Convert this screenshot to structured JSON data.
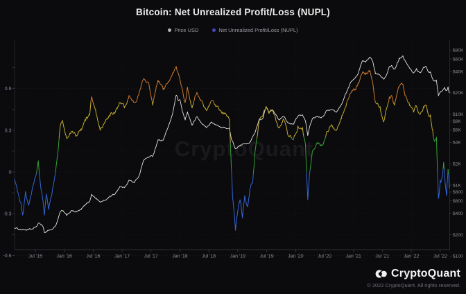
{
  "header": {
    "title": "Bitcoin: Net Unrealized Profit/Loss (NUPL)"
  },
  "legend": [
    {
      "label": "Price USD",
      "color": "#b4b4b4"
    },
    {
      "label": "Net Unrealized Profit/Loss (NUPL)",
      "color": "#4646c0"
    }
  ],
  "watermark": "CryptoQuant",
  "footer": {
    "brand": "CryptoQuant",
    "copyright": "© 2022 CryptoQuant. All rights reserved."
  },
  "chart_data": {
    "type": "line",
    "title": "Bitcoin: Net Unrealized Profit/Loss (NUPL)",
    "grid": "dotted",
    "legend_position": "top-center",
    "x_ticks": [
      {
        "t": 2015.5,
        "label": "Jul '15"
      },
      {
        "t": 2016.0,
        "label": "Jan '16"
      },
      {
        "t": 2016.5,
        "label": "Jul '16"
      },
      {
        "t": 2017.0,
        "label": "Jan '17"
      },
      {
        "t": 2017.5,
        "label": "Jul '17"
      },
      {
        "t": 2018.0,
        "label": "Jan '18"
      },
      {
        "t": 2018.5,
        "label": "Jul '18"
      },
      {
        "t": 2019.0,
        "label": "Jan '19"
      },
      {
        "t": 2019.5,
        "label": "Jul '19"
      },
      {
        "t": 2020.0,
        "label": "Jan '20"
      },
      {
        "t": 2020.5,
        "label": "Jul '20"
      },
      {
        "t": 2021.0,
        "label": "Jan '21"
      },
      {
        "t": 2021.5,
        "label": "Jul '21"
      },
      {
        "t": 2022.0,
        "label": "Jan '22"
      },
      {
        "t": 2022.5,
        "label": "Jul '22"
      }
    ],
    "left_axis": {
      "name": "NUPL",
      "range": [
        -0.72,
        0.95
      ],
      "grid_step": 0.15,
      "ticks": [
        {
          "v": 0.6,
          "label": "0.6"
        },
        {
          "v": 0.3,
          "label": "0.3"
        },
        {
          "v": 0,
          "label": "0"
        },
        {
          "v": -0.3,
          "label": "-0.3"
        },
        {
          "v": -0.6,
          "label": "-0.6"
        }
      ]
    },
    "right_axis": {
      "name": "Price USD",
      "scale": "log",
      "ticks": [
        {
          "v": 80000,
          "label": "$80K"
        },
        {
          "v": 60000,
          "label": "$60K"
        },
        {
          "v": 40000,
          "label": "$40K"
        },
        {
          "v": 20000,
          "label": "$20K"
        },
        {
          "v": 10000,
          "label": "$10K"
        },
        {
          "v": 8000,
          "label": "$8K"
        },
        {
          "v": 6000,
          "label": "$6K"
        },
        {
          "v": 4000,
          "label": "$4K"
        },
        {
          "v": 2000,
          "label": "$2K"
        },
        {
          "v": 1000,
          "label": "$1K"
        },
        {
          "v": 800,
          "label": "$800"
        },
        {
          "v": 600,
          "label": "$600"
        },
        {
          "v": 400,
          "label": "$400"
        },
        {
          "v": 200,
          "label": "$200"
        },
        {
          "v": 100,
          "label": "$100"
        }
      ]
    },
    "series": [
      {
        "name": "Price USD",
        "axis": "right",
        "color": "#e4e4e4",
        "points": [
          [
            2015.14,
            250
          ],
          [
            2015.22,
            240
          ],
          [
            2015.29,
            236
          ],
          [
            2015.37,
            233
          ],
          [
            2015.46,
            241
          ],
          [
            2015.52,
            262
          ],
          [
            2015.56,
            292
          ],
          [
            2015.62,
            270
          ],
          [
            2015.66,
            214
          ],
          [
            2015.72,
            232
          ],
          [
            2015.79,
            238
          ],
          [
            2015.85,
            268
          ],
          [
            2015.89,
            330
          ],
          [
            2015.93,
            420
          ],
          [
            2015.97,
            435
          ],
          [
            2016.04,
            372
          ],
          [
            2016.12,
            436
          ],
          [
            2016.21,
            418
          ],
          [
            2016.29,
            450
          ],
          [
            2016.37,
            532
          ],
          [
            2016.44,
            585
          ],
          [
            2016.47,
            745
          ],
          [
            2016.54,
            662
          ],
          [
            2016.62,
            578
          ],
          [
            2016.71,
            610
          ],
          [
            2016.79,
            700
          ],
          [
            2016.87,
            742
          ],
          [
            2016.96,
            955
          ],
          [
            2017.04,
            920
          ],
          [
            2017.12,
            1180
          ],
          [
            2017.21,
            1080
          ],
          [
            2017.29,
            1340
          ],
          [
            2017.37,
            2250
          ],
          [
            2017.46,
            2500
          ],
          [
            2017.53,
            2550
          ],
          [
            2017.62,
            4350
          ],
          [
            2017.71,
            4300
          ],
          [
            2017.79,
            6400
          ],
          [
            2017.87,
            9800
          ],
          [
            2017.935,
            18500
          ],
          [
            2017.97,
            15500
          ],
          [
            2018.0,
            16000
          ],
          [
            2018.04,
            11000
          ],
          [
            2018.09,
            8300
          ],
          [
            2018.13,
            10800
          ],
          [
            2018.21,
            7000
          ],
          [
            2018.29,
            9200
          ],
          [
            2018.37,
            7500
          ],
          [
            2018.46,
            6450
          ],
          [
            2018.54,
            7700
          ],
          [
            2018.62,
            7030
          ],
          [
            2018.71,
            6600
          ],
          [
            2018.79,
            6400
          ],
          [
            2018.855,
            6350
          ],
          [
            2018.89,
            4450
          ],
          [
            2018.96,
            3250
          ],
          [
            2019.04,
            3560
          ],
          [
            2019.12,
            3850
          ],
          [
            2019.21,
            4080
          ],
          [
            2019.29,
            5300
          ],
          [
            2019.37,
            8500
          ],
          [
            2019.43,
            8700
          ],
          [
            2019.49,
            12800
          ],
          [
            2019.54,
            10500
          ],
          [
            2019.6,
            11500
          ],
          [
            2019.66,
            9800
          ],
          [
            2019.71,
            8400
          ],
          [
            2019.79,
            9200
          ],
          [
            2019.87,
            7500
          ],
          [
            2019.96,
            7200
          ],
          [
            2020.04,
            9350
          ],
          [
            2020.12,
            9800
          ],
          [
            2020.17,
            8000
          ],
          [
            2020.21,
            5000
          ],
          [
            2020.24,
            6500
          ],
          [
            2020.29,
            8700
          ],
          [
            2020.37,
            9400
          ],
          [
            2020.46,
            9150
          ],
          [
            2020.54,
            11300
          ],
          [
            2020.62,
            11650
          ],
          [
            2020.71,
            10700
          ],
          [
            2020.79,
            13700
          ],
          [
            2020.87,
            19600
          ],
          [
            2020.96,
            28900
          ],
          [
            2021.04,
            33500
          ],
          [
            2021.08,
            37000
          ],
          [
            2021.12,
            48000
          ],
          [
            2021.16,
            57000
          ],
          [
            2021.21,
            54000
          ],
          [
            2021.25,
            59000
          ],
          [
            2021.285,
            63500
          ],
          [
            2021.33,
            56000
          ],
          [
            2021.38,
            37000
          ],
          [
            2021.46,
            35500
          ],
          [
            2021.52,
            31200
          ],
          [
            2021.56,
            34000
          ],
          [
            2021.62,
            47000
          ],
          [
            2021.66,
            48800
          ],
          [
            2021.71,
            43500
          ],
          [
            2021.76,
            54000
          ],
          [
            2021.79,
            61500
          ],
          [
            2021.855,
            66500
          ],
          [
            2021.89,
            57500
          ],
          [
            2021.96,
            46500
          ],
          [
            2022.04,
            38000
          ],
          [
            2022.09,
            44000
          ],
          [
            2022.12,
            39500
          ],
          [
            2022.16,
            38500
          ],
          [
            2022.21,
            45800
          ],
          [
            2022.26,
            46500
          ],
          [
            2022.29,
            40000
          ],
          [
            2022.33,
            39500
          ],
          [
            2022.37,
            31500
          ],
          [
            2022.4,
            29500
          ],
          [
            2022.435,
            30200
          ],
          [
            2022.47,
            18200
          ],
          [
            2022.5,
            20200
          ],
          [
            2022.54,
            21500
          ],
          [
            2022.575,
            23800
          ],
          [
            2022.61,
            21500
          ],
          [
            2022.635,
            24300
          ],
          [
            2022.66,
            19900
          ]
        ]
      },
      {
        "name": "Net Unrealized Profit/Loss (NUPL)",
        "axis": "left",
        "color_bands": [
          {
            "max": 0,
            "color": "#3566d6"
          },
          {
            "max": 0.25,
            "color": "#37a137"
          },
          {
            "max": 0.5,
            "color": "#c3ac2f"
          },
          {
            "max": 0.75,
            "color": "#c9792e"
          },
          {
            "max": 99,
            "color": "#c4522a"
          }
        ],
        "points": [
          [
            2015.14,
            -0.05
          ],
          [
            2015.2,
            -0.15
          ],
          [
            2015.25,
            -0.22
          ],
          [
            2015.28,
            -0.31
          ],
          [
            2015.33,
            -0.14
          ],
          [
            2015.38,
            -0.24
          ],
          [
            2015.43,
            -0.16
          ],
          [
            2015.48,
            -0.07
          ],
          [
            2015.52,
            -0.01
          ],
          [
            2015.55,
            0.08
          ],
          [
            2015.59,
            -0.1
          ],
          [
            2015.63,
            -0.2
          ],
          [
            2015.655,
            -0.31
          ],
          [
            2015.69,
            -0.16
          ],
          [
            2015.73,
            -0.27
          ],
          [
            2015.77,
            -0.18
          ],
          [
            2015.81,
            -0.1
          ],
          [
            2015.85,
            0.0
          ],
          [
            2015.89,
            0.14
          ],
          [
            2015.93,
            0.33
          ],
          [
            2015.97,
            0.37
          ],
          [
            2016.04,
            0.24
          ],
          [
            2016.12,
            0.29
          ],
          [
            2016.21,
            0.26
          ],
          [
            2016.29,
            0.31
          ],
          [
            2016.37,
            0.37
          ],
          [
            2016.44,
            0.41
          ],
          [
            2016.47,
            0.54
          ],
          [
            2016.54,
            0.45
          ],
          [
            2016.62,
            0.3
          ],
          [
            2016.71,
            0.36
          ],
          [
            2016.79,
            0.4
          ],
          [
            2016.87,
            0.42
          ],
          [
            2016.96,
            0.5
          ],
          [
            2017.04,
            0.46
          ],
          [
            2017.12,
            0.55
          ],
          [
            2017.21,
            0.5
          ],
          [
            2017.29,
            0.56
          ],
          [
            2017.37,
            0.67
          ],
          [
            2017.46,
            0.64
          ],
          [
            2017.53,
            0.48
          ],
          [
            2017.62,
            0.66
          ],
          [
            2017.71,
            0.59
          ],
          [
            2017.79,
            0.64
          ],
          [
            2017.87,
            0.71
          ],
          [
            2017.935,
            0.76
          ],
          [
            2017.97,
            0.71
          ],
          [
            2018.04,
            0.6
          ],
          [
            2018.09,
            0.5
          ],
          [
            2018.13,
            0.61
          ],
          [
            2018.21,
            0.46
          ],
          [
            2018.29,
            0.57
          ],
          [
            2018.37,
            0.51
          ],
          [
            2018.46,
            0.44
          ],
          [
            2018.54,
            0.51
          ],
          [
            2018.62,
            0.47
          ],
          [
            2018.71,
            0.44
          ],
          [
            2018.79,
            0.42
          ],
          [
            2018.855,
            0.38
          ],
          [
            2018.88,
            0.12
          ],
          [
            2018.91,
            -0.18
          ],
          [
            2018.96,
            -0.42
          ],
          [
            2019.0,
            -0.28
          ],
          [
            2019.04,
            -0.2
          ],
          [
            2019.08,
            -0.33
          ],
          [
            2019.12,
            -0.17
          ],
          [
            2019.17,
            -0.25
          ],
          [
            2019.21,
            -0.12
          ],
          [
            2019.26,
            -0.06
          ],
          [
            2019.3,
            0.15
          ],
          [
            2019.37,
            0.37
          ],
          [
            2019.43,
            0.4
          ],
          [
            2019.49,
            0.47
          ],
          [
            2019.54,
            0.42
          ],
          [
            2019.6,
            0.44
          ],
          [
            2019.66,
            0.37
          ],
          [
            2019.71,
            0.32
          ],
          [
            2019.79,
            0.38
          ],
          [
            2019.87,
            0.26
          ],
          [
            2019.96,
            0.23
          ],
          [
            2020.04,
            0.33
          ],
          [
            2020.12,
            0.32
          ],
          [
            2020.17,
            0.2
          ],
          [
            2020.21,
            -0.2
          ],
          [
            2020.24,
            -0.02
          ],
          [
            2020.29,
            0.15
          ],
          [
            2020.37,
            0.21
          ],
          [
            2020.46,
            0.19
          ],
          [
            2020.54,
            0.29
          ],
          [
            2020.62,
            0.34
          ],
          [
            2020.71,
            0.3
          ],
          [
            2020.79,
            0.38
          ],
          [
            2020.87,
            0.47
          ],
          [
            2020.96,
            0.57
          ],
          [
            2021.04,
            0.59
          ],
          [
            2021.08,
            0.64
          ],
          [
            2021.12,
            0.68
          ],
          [
            2021.16,
            0.72
          ],
          [
            2021.21,
            0.7
          ],
          [
            2021.25,
            0.71
          ],
          [
            2021.285,
            0.73
          ],
          [
            2021.33,
            0.65
          ],
          [
            2021.38,
            0.5
          ],
          [
            2021.46,
            0.47
          ],
          [
            2021.52,
            0.36
          ],
          [
            2021.56,
            0.44
          ],
          [
            2021.62,
            0.54
          ],
          [
            2021.66,
            0.55
          ],
          [
            2021.71,
            0.48
          ],
          [
            2021.76,
            0.57
          ],
          [
            2021.79,
            0.61
          ],
          [
            2021.855,
            0.63
          ],
          [
            2021.89,
            0.55
          ],
          [
            2021.96,
            0.5
          ],
          [
            2022.04,
            0.43
          ],
          [
            2022.09,
            0.47
          ],
          [
            2022.12,
            0.43
          ],
          [
            2022.16,
            0.42
          ],
          [
            2022.21,
            0.47
          ],
          [
            2022.26,
            0.48
          ],
          [
            2022.29,
            0.42
          ],
          [
            2022.33,
            0.41
          ],
          [
            2022.37,
            0.3
          ],
          [
            2022.4,
            0.22
          ],
          [
            2022.435,
            0.25
          ],
          [
            2022.47,
            -0.19
          ],
          [
            2022.5,
            -0.06
          ],
          [
            2022.54,
            -0.03
          ],
          [
            2022.56,
            0.07
          ],
          [
            2022.585,
            -0.08
          ],
          [
            2022.61,
            -0.17
          ],
          [
            2022.635,
            0.02
          ],
          [
            2022.66,
            -0.12
          ]
        ]
      }
    ]
  }
}
